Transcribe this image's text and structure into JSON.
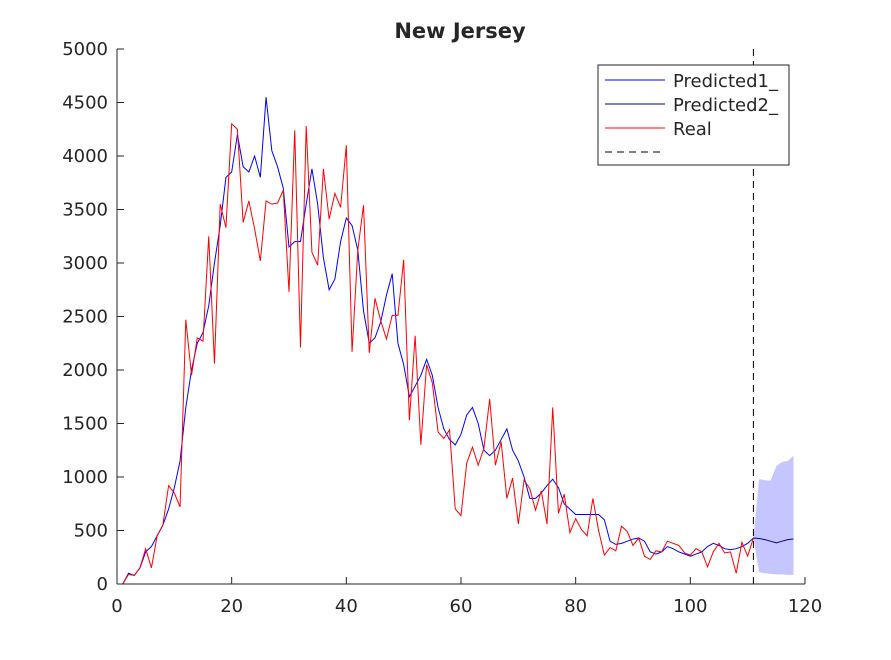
{
  "chart_data": {
    "type": "line",
    "title": "New Jersey",
    "xlabel": "",
    "ylabel": "",
    "xlim": [
      0,
      120
    ],
    "ylim": [
      0,
      5000
    ],
    "xticks": [
      0,
      20,
      40,
      60,
      80,
      100,
      120
    ],
    "yticks": [
      0,
      500,
      1000,
      1500,
      2000,
      2500,
      3000,
      3500,
      4000,
      4500,
      5000
    ],
    "grid": false,
    "legend_position": "top-right",
    "vline_x": 111,
    "colors": {
      "predicted1": "#0000ff",
      "predicted2": "#00008b",
      "real": "#ff0000",
      "vline": "#000000",
      "band": "#c5c5ff",
      "axis": "#262626"
    },
    "series": [
      {
        "name": "Predicted1_",
        "x": [
          1,
          2,
          3,
          4,
          5,
          6,
          7,
          8,
          9,
          10,
          11,
          12,
          13,
          14,
          15,
          16,
          17,
          18,
          19,
          20,
          21,
          22,
          23,
          24,
          25,
          26,
          27,
          28,
          29,
          30,
          31,
          32,
          33,
          34,
          35,
          36,
          37,
          38,
          39,
          40,
          41,
          42,
          43,
          44,
          45,
          46,
          47,
          48,
          49,
          50,
          51,
          52,
          53,
          54,
          55,
          56,
          57,
          58,
          59,
          60,
          61,
          62,
          63,
          64,
          65,
          66,
          67,
          68,
          69,
          70,
          71,
          72,
          73,
          74,
          75,
          76,
          77,
          78,
          79,
          80,
          81,
          82,
          83,
          84,
          85,
          86,
          87,
          88,
          89,
          90,
          91,
          92,
          93,
          94,
          95,
          96,
          97,
          98,
          99,
          100,
          101,
          102,
          103,
          104,
          105,
          106,
          107,
          108,
          109,
          110,
          111
        ],
        "y": [
          0,
          100,
          80,
          150,
          300,
          350,
          450,
          550,
          700,
          900,
          1150,
          1650,
          2000,
          2250,
          2350,
          2600,
          3000,
          3350,
          3800,
          3850,
          4200,
          3900,
          3850,
          4000,
          3800,
          4550,
          4050,
          3900,
          3700,
          3150,
          3200,
          3200,
          3550,
          3880,
          3550,
          3050,
          2750,
          2850,
          3200,
          3420,
          3350,
          3120,
          2550,
          2250,
          2300,
          2450,
          2700,
          2900,
          2250,
          2050,
          1750,
          1850,
          1950,
          2100,
          1950,
          1650,
          1450,
          1350,
          1300,
          1400,
          1580,
          1650,
          1500,
          1250,
          1200,
          1250,
          1350,
          1450,
          1250,
          1150,
          1000,
          800,
          800,
          850,
          920,
          980,
          900,
          750,
          700,
          650,
          650,
          650,
          650,
          650,
          600,
          400,
          370,
          380,
          400,
          420,
          430,
          400,
          300,
          280,
          300,
          350,
          330,
          300,
          280,
          260,
          280,
          300,
          350,
          380,
          360,
          330,
          320,
          330,
          350,
          380,
          430
        ]
      },
      {
        "name": "Predicted2_",
        "x": [
          111,
          112,
          113,
          114,
          115,
          116,
          117,
          118
        ],
        "y": [
          430,
          425,
          415,
          400,
          385,
          400,
          415,
          420
        ],
        "lower": [
          430,
          110,
          100,
          95,
          90,
          90,
          85,
          85
        ],
        "upper": [
          430,
          980,
          970,
          965,
          1100,
          1140,
          1150,
          1200
        ]
      },
      {
        "name": "Real",
        "x": [
          1,
          2,
          3,
          4,
          5,
          6,
          7,
          8,
          9,
          10,
          11,
          12,
          13,
          14,
          15,
          16,
          17,
          18,
          19,
          20,
          21,
          22,
          23,
          24,
          25,
          26,
          27,
          28,
          29,
          30,
          31,
          32,
          33,
          34,
          35,
          36,
          37,
          38,
          39,
          40,
          41,
          42,
          43,
          44,
          45,
          46,
          47,
          48,
          49,
          50,
          51,
          52,
          53,
          54,
          55,
          56,
          57,
          58,
          59,
          60,
          61,
          62,
          63,
          64,
          65,
          66,
          67,
          68,
          69,
          70,
          71,
          72,
          73,
          74,
          75,
          76,
          77,
          78,
          79,
          80,
          81,
          82,
          83,
          84,
          85,
          86,
          87,
          88,
          89,
          90,
          91,
          92,
          93,
          94,
          95,
          96,
          97,
          98,
          99,
          100,
          101,
          102,
          103,
          104,
          105,
          106,
          107,
          108,
          109,
          110,
          111
        ],
        "y": [
          0,
          90,
          80,
          150,
          330,
          150,
          450,
          550,
          920,
          850,
          720,
          2470,
          1950,
          2300,
          2270,
          3250,
          2060,
          3550,
          3330,
          4300,
          4250,
          3380,
          3580,
          3320,
          3020,
          3580,
          3550,
          3560,
          3680,
          2730,
          4240,
          2210,
          4280,
          3100,
          2980,
          3880,
          3410,
          3650,
          3520,
          4100,
          2170,
          3120,
          3540,
          2160,
          2670,
          2460,
          2290,
          2510,
          2510,
          3030,
          1530,
          2320,
          1300,
          2050,
          1880,
          1420,
          1360,
          1440,
          700,
          640,
          1130,
          1280,
          1110,
          1270,
          1730,
          1110,
          1330,
          800,
          990,
          560,
          970,
          890,
          690,
          870,
          560,
          1650,
          660,
          840,
          480,
          610,
          510,
          450,
          800,
          500,
          270,
          340,
          310,
          540,
          490,
          360,
          430,
          260,
          230,
          310,
          300,
          400,
          380,
          360,
          290,
          270,
          330,
          300,
          160,
          300,
          380,
          290,
          300,
          100,
          390,
          260,
          430
        ]
      }
    ]
  }
}
